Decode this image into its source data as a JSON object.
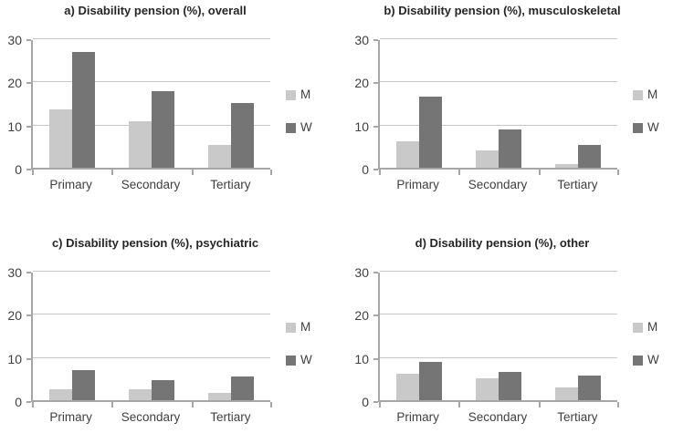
{
  "figure": {
    "background": "#ffffff",
    "colors": {
      "bar_m": "#c9c9c9",
      "bar_w": "#757575",
      "gridline": "#c6c6c6",
      "axis": "#a6a6a6",
      "title_text": "#262626",
      "label_text": "#404040"
    }
  },
  "chart_data": [
    {
      "id": "a",
      "type": "bar",
      "title": "a) Disability pension (%), overall",
      "categories": [
        "Primary",
        "Secondary",
        "Tertiary"
      ],
      "series": [
        {
          "name": "M",
          "color": "#c9c9c9",
          "values": [
            13.5,
            10.8,
            5.2
          ]
        },
        {
          "name": "W",
          "color": "#757575",
          "values": [
            26.9,
            17.7,
            14.9
          ]
        }
      ],
      "ylim": [
        0,
        30
      ],
      "yticks": [
        0,
        10,
        20,
        30
      ],
      "grid": true,
      "legend_position": "right",
      "legend": [
        "M",
        "W"
      ]
    },
    {
      "id": "b",
      "type": "bar",
      "title": "b) Disability pension (%), musculoskeletal",
      "categories": [
        "Primary",
        "Secondary",
        "Tertiary"
      ],
      "series": [
        {
          "name": "M",
          "color": "#c9c9c9",
          "values": [
            6.2,
            4.1,
            0.9
          ]
        },
        {
          "name": "W",
          "color": "#757575",
          "values": [
            16.4,
            8.9,
            5.2
          ]
        }
      ],
      "ylim": [
        0,
        30
      ],
      "yticks": [
        0,
        10,
        20,
        30
      ],
      "grid": true,
      "legend_position": "right",
      "legend": [
        "M",
        "W"
      ]
    },
    {
      "id": "c",
      "type": "bar",
      "title": "c) Disability pension (%), psychiatric",
      "categories": [
        "Primary",
        "Secondary",
        "Tertiary"
      ],
      "series": [
        {
          "name": "M",
          "color": "#c9c9c9",
          "values": [
            2.5,
            2.6,
            1.6
          ]
        },
        {
          "name": "W",
          "color": "#757575",
          "values": [
            6.9,
            4.6,
            5.5
          ]
        }
      ],
      "ylim": [
        0,
        30
      ],
      "yticks": [
        0,
        10,
        20,
        30
      ],
      "grid": true,
      "legend_position": "right",
      "legend": [
        "M",
        "W"
      ]
    },
    {
      "id": "d",
      "type": "bar",
      "title": "d) Disability pension (%), other",
      "categories": [
        "Primary",
        "Secondary",
        "Tertiary"
      ],
      "series": [
        {
          "name": "M",
          "color": "#c9c9c9",
          "values": [
            6.2,
            5.0,
            2.9
          ]
        },
        {
          "name": "W",
          "color": "#757575",
          "values": [
            8.8,
            6.5,
            5.8
          ]
        }
      ],
      "ylim": [
        0,
        30
      ],
      "yticks": [
        0,
        10,
        20,
        30
      ],
      "grid": true,
      "legend_position": "right",
      "legend": [
        "M",
        "W"
      ]
    }
  ]
}
